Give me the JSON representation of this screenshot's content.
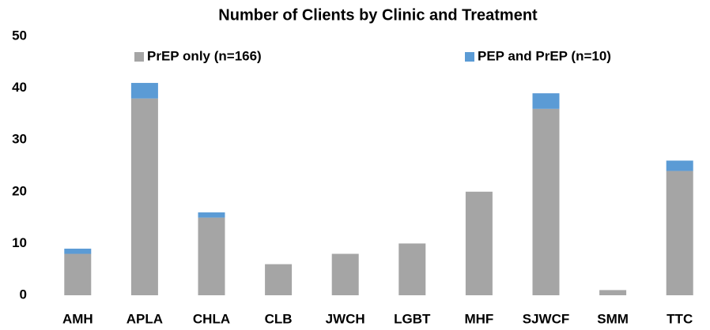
{
  "chart_data": {
    "type": "stacked_bar",
    "title": "Number of Clients by Clinic and Treatment",
    "categories": [
      "AMH",
      "APLA",
      "CHLA",
      "CLB",
      "JWCH",
      "LGBT",
      "MHF",
      "SJWCF",
      "SMM",
      "TTC"
    ],
    "series": [
      {
        "name": "PrEP only (n=166)",
        "color": "#a5a5a5",
        "values": [
          8,
          38,
          15,
          6,
          8,
          10,
          20,
          36,
          1,
          24
        ]
      },
      {
        "name": "PEP and PrEP (n=10)",
        "color": "#5b9bd5",
        "values": [
          1,
          3,
          1,
          0,
          0,
          0,
          0,
          3,
          0,
          2
        ]
      }
    ],
    "ylim": [
      0,
      50
    ],
    "yticks": [
      0,
      10,
      20,
      30,
      40,
      50
    ],
    "grid": false,
    "legend": "top"
  }
}
